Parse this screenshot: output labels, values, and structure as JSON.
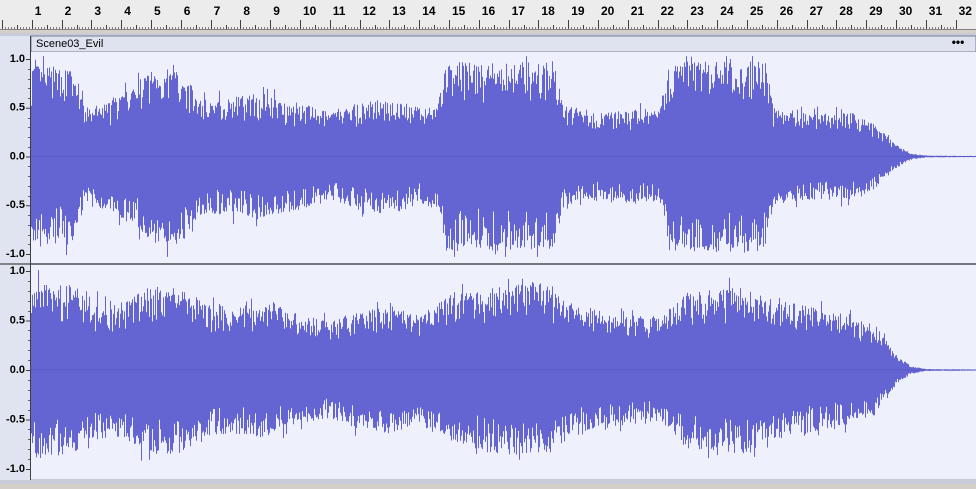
{
  "ruler": {
    "labels": [
      "1",
      "2",
      "3",
      "4",
      "5",
      "6",
      "7",
      "8",
      "9",
      "10",
      "11",
      "12",
      "13",
      "14",
      "15",
      "16",
      "17",
      "18",
      "19",
      "20",
      "21",
      "22",
      "23",
      "24",
      "25",
      "26",
      "27",
      "28",
      "29",
      "30",
      "31",
      "32"
    ]
  },
  "track": {
    "name": "Scene03_Evil",
    "menu": "•••",
    "channels": [
      {
        "scale": [
          "1.0",
          "0.5",
          "0.0",
          "-0.5",
          "-1.0"
        ]
      },
      {
        "scale": [
          "1.0",
          "0.5",
          "0.0",
          "-0.5",
          "-1.0"
        ]
      }
    ]
  }
}
